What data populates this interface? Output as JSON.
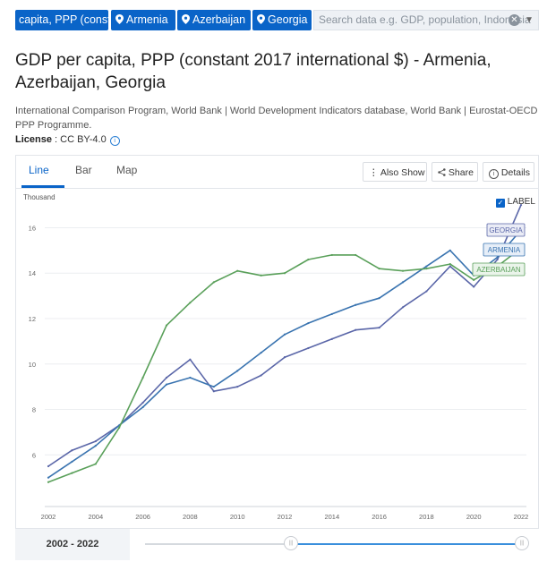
{
  "filters": {
    "indicator": "capita, PPP (const...",
    "countries": [
      "Armenia",
      "Azerbaijan",
      "Georgia"
    ],
    "search_placeholder": "Search data e.g. GDP, population, Indonesia"
  },
  "title": "GDP per capita, PPP (constant 2017 international $) - Armenia, Azerbaijan, Georgia",
  "sources": "International Comparison Program, World Bank | World Development Indicators database, World Bank | Eurostat-OECD PPP Programme.",
  "license": {
    "label": "License",
    "value": " : CC BY-4.0"
  },
  "tabs": [
    "Line",
    "Bar",
    "Map"
  ],
  "toolbar": {
    "also_show": "Also Show",
    "share": "Share",
    "details": "Details"
  },
  "label_toggle": "LABEL",
  "range": "2002 - 2022",
  "colors": {
    "accent": "#0a64c8",
    "georgia": "#5a66a8",
    "armenia": "#3a74b0",
    "azerbaijan": "#5aa05a"
  },
  "chart_data": {
    "type": "line",
    "ylabel": "Thousand",
    "ylim": [
      4.2,
      17.2
    ],
    "yticks": [
      6,
      8,
      10,
      12,
      14,
      16
    ],
    "xticks": [
      2002,
      2004,
      2006,
      2008,
      2010,
      2012,
      2014,
      2016,
      2018,
      2020,
      2022
    ],
    "x": [
      2002,
      2003,
      2004,
      2005,
      2006,
      2007,
      2008,
      2009,
      2010,
      2011,
      2012,
      2013,
      2014,
      2015,
      2016,
      2017,
      2018,
      2019,
      2020,
      2021,
      2022
    ],
    "series": [
      {
        "name": "GEORGIA",
        "values": [
          5.5,
          6.2,
          6.6,
          7.3,
          8.3,
          9.4,
          10.2,
          8.8,
          9.0,
          9.5,
          10.3,
          10.7,
          11.1,
          11.5,
          11.6,
          12.5,
          13.2,
          14.3,
          13.4,
          14.6,
          17.0
        ]
      },
      {
        "name": "ARMENIA",
        "values": [
          5.0,
          5.7,
          6.4,
          7.3,
          8.1,
          9.1,
          9.4,
          9.0,
          9.7,
          10.5,
          11.3,
          11.8,
          12.2,
          12.6,
          12.9,
          13.6,
          14.3,
          15.0,
          13.9,
          14.7,
          15.9
        ]
      },
      {
        "name": "AZERBAIJAN",
        "values": [
          4.8,
          5.2,
          5.6,
          7.2,
          9.4,
          11.7,
          12.7,
          13.6,
          14.1,
          13.9,
          14.0,
          14.6,
          14.8,
          14.8,
          14.2,
          14.1,
          14.2,
          14.4,
          13.7,
          14.3,
          15.1
        ]
      }
    ]
  }
}
